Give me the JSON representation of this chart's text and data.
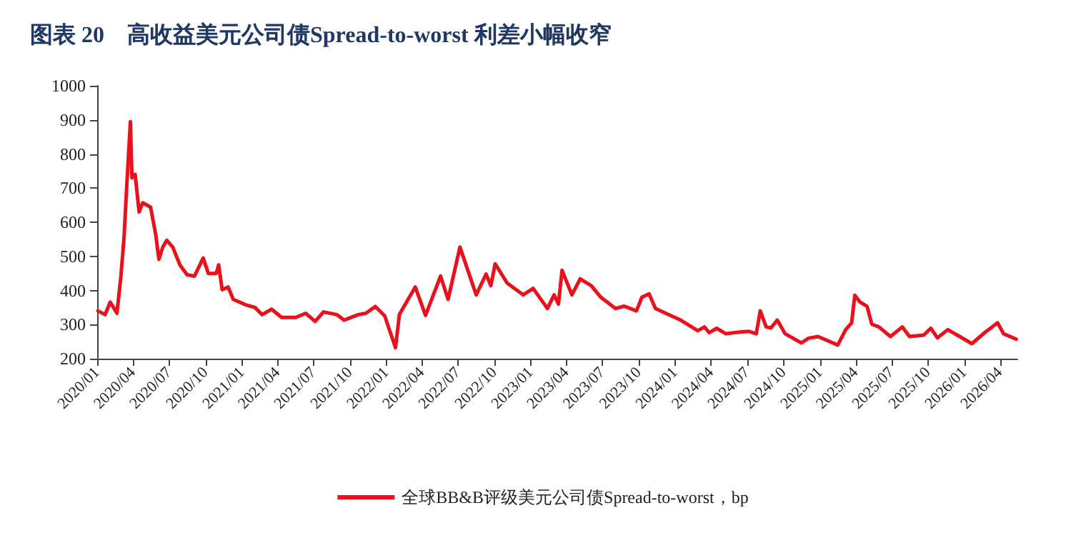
{
  "chart_data": {
    "type": "line",
    "title": "图表 20    高收益美元公司债Spread-to-worst 利差小幅收窄",
    "x": [
      "2020-01-03",
      "2020-01-21",
      "2020-02-03",
      "2020-02-20",
      "2020-03-01",
      "2020-03-09",
      "2020-03-15",
      "2020-03-25",
      "2020-03-29",
      "2020-04-06",
      "2020-04-16",
      "2020-04-25",
      "2020-05-15",
      "2020-05-28",
      "2020-06-05",
      "2020-06-15",
      "2020-06-25",
      "2020-07-10",
      "2020-07-28",
      "2020-08-15",
      "2020-09-03",
      "2020-09-25",
      "2020-10-08",
      "2020-10-28",
      "2020-11-03",
      "2020-11-12",
      "2020-11-27",
      "2020-12-10",
      "2021-01-10",
      "2021-02-03",
      "2021-02-21",
      "2021-03-17",
      "2021-04-11",
      "2021-05-17",
      "2021-06-11",
      "2021-07-05",
      "2021-07-26",
      "2021-08-29",
      "2021-09-16",
      "2021-10-22",
      "2021-11-10",
      "2021-12-04",
      "2021-12-28",
      "2022-01-24",
      "2022-02-03",
      "2022-03-15",
      "2022-04-10",
      "2022-05-18",
      "2022-06-06",
      "2022-07-06",
      "2022-08-16",
      "2022-09-10",
      "2022-09-22",
      "2022-10-03",
      "2022-11-02",
      "2022-12-13",
      "2023-01-07",
      "2023-02-12",
      "2023-03-01",
      "2023-03-12",
      "2023-03-21",
      "2023-04-15",
      "2023-05-06",
      "2023-06-03",
      "2023-06-27",
      "2023-08-03",
      "2023-08-25",
      "2023-09-25",
      "2023-10-09",
      "2023-10-27",
      "2023-11-12",
      "2023-12-21",
      "2024-01-15",
      "2024-02-27",
      "2024-03-15",
      "2024-03-27",
      "2024-04-15",
      "2024-05-08",
      "2024-06-12",
      "2024-07-06",
      "2024-07-24",
      "2024-08-03",
      "2024-08-18",
      "2024-08-30",
      "2024-09-15",
      "2024-10-05",
      "2024-11-15",
      "2024-12-03",
      "2024-12-27",
      "2025-01-20",
      "2025-02-15",
      "2025-03-07",
      "2025-03-22",
      "2025-03-30",
      "2025-04-12",
      "2025-04-30",
      "2025-05-12",
      "2025-05-30",
      "2025-06-28",
      "2025-07-28",
      "2025-08-15",
      "2025-09-20",
      "2025-10-08",
      "2025-10-25",
      "2025-11-20",
      "2025-12-20",
      "2026-01-20",
      "2026-02-22",
      "2026-03-26",
      "2026-04-10",
      "2026-05-12"
    ],
    "series": [
      {
        "name": "全球BB&B评级美元公司债Spread-to-worst，bp",
        "color": "#e8111c",
        "values": [
          340,
          329,
          366,
          333,
          442,
          556,
          690,
          895,
          730,
          740,
          630,
          657,
          644,
          564,
          491,
          527,
          547,
          527,
          475,
          446,
          442,
          495,
          450,
          450,
          475,
          402,
          410,
          374,
          358,
          350,
          329,
          345,
          321,
          321,
          333,
          309,
          337,
          329,
          313,
          329,
          333,
          353,
          325,
          232,
          330,
          410,
          327,
          442,
          374,
          527,
          387,
          448,
          414,
          478,
          422,
          387,
          406,
          347,
          387,
          360,
          459,
          387,
          434,
          414,
          380,
          347,
          354,
          340,
          380,
          390,
          347,
          326,
          313,
          282,
          293,
          276,
          289,
          273,
          278,
          280,
          273,
          340,
          293,
          290,
          313,
          273,
          246,
          260,
          265,
          253,
          240,
          285,
          305,
          386,
          366,
          353,
          301,
          293,
          265,
          293,
          265,
          269,
          289,
          261,
          285,
          265,
          244,
          277,
          305,
          273,
          257
        ]
      }
    ],
    "xlim": [
      "2020-01-01",
      "2026-05-15"
    ],
    "xticks": [
      {
        "value": "2020-01",
        "label": "2020/01"
      },
      {
        "value": "2020-04",
        "label": "2020/04"
      },
      {
        "value": "2020-07",
        "label": "2020/07"
      },
      {
        "value": "2020-10",
        "label": "2020/10"
      },
      {
        "value": "2021-01",
        "label": "2021/01"
      },
      {
        "value": "2021-04",
        "label": "2021/04"
      },
      {
        "value": "2021-07",
        "label": "2021/07"
      },
      {
        "value": "2021-10",
        "label": "2021/10"
      },
      {
        "value": "2022-01",
        "label": "2022/01"
      },
      {
        "value": "2022-04",
        "label": "2022/04"
      },
      {
        "value": "2022-07",
        "label": "2022/07"
      },
      {
        "value": "2022-10",
        "label": "2022/10"
      },
      {
        "value": "2023-01",
        "label": "2023/01"
      },
      {
        "value": "2023-04",
        "label": "2023/04"
      },
      {
        "value": "2023-07",
        "label": "2023/07"
      },
      {
        "value": "2023-10",
        "label": "2023/10"
      },
      {
        "value": "2024-01",
        "label": "2024/01"
      },
      {
        "value": "2024-04",
        "label": "2024/04"
      },
      {
        "value": "2024-07",
        "label": "2024/07"
      },
      {
        "value": "2024-10",
        "label": "2024/10"
      },
      {
        "value": "2025-01",
        "label": "2025/01"
      },
      {
        "value": "2025-04",
        "label": "2025/04"
      },
      {
        "value": "2025-07",
        "label": "2025/07"
      },
      {
        "value": "2025-10",
        "label": "2025/10"
      },
      {
        "value": "2026-01",
        "label": "2026/01"
      },
      {
        "value": "2026-04",
        "label": "2026/04"
      }
    ],
    "ylim": [
      200,
      1000
    ],
    "yticks": [
      200,
      300,
      400,
      500,
      600,
      700,
      800,
      900,
      1000
    ],
    "grid": false,
    "legend": "bottom",
    "marker": "none",
    "line_style": "solid"
  }
}
